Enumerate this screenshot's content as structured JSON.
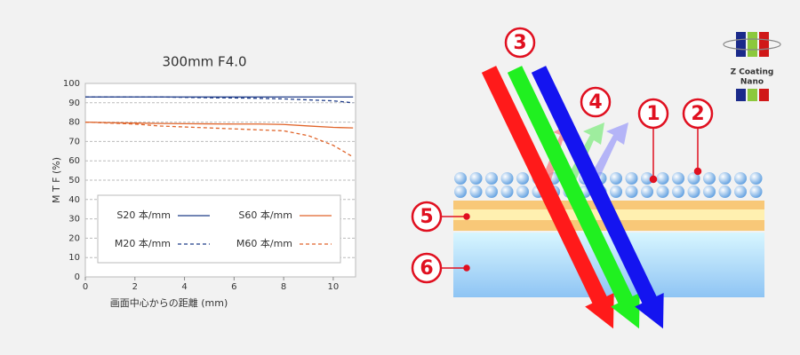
{
  "chart_data": {
    "type": "line",
    "title": "300mm F4.0",
    "x_label": "画面中心からの距離 (mm)",
    "y_label": "M T F (%)",
    "x": [
      0,
      1,
      2,
      3,
      4,
      5,
      6,
      7,
      8,
      9,
      10,
      10.8
    ],
    "series": [
      {
        "name": "S20 本/mm",
        "color": "#1f3c88",
        "dashed": false,
        "values": [
          93,
          93,
          93,
          93,
          93,
          93,
          93,
          93,
          93,
          93,
          93,
          93
        ]
      },
      {
        "name": "M20 本/mm",
        "color": "#1f3c88",
        "dashed": true,
        "values": [
          93,
          93,
          93,
          93,
          92.8,
          92.6,
          92.5,
          92.3,
          92,
          91.5,
          91,
          90
        ]
      },
      {
        "name": "S60 本/mm",
        "color": "#e0642a",
        "dashed": false,
        "values": [
          80,
          79.7,
          79.5,
          79.3,
          79.2,
          79.1,
          79,
          79,
          78.8,
          78,
          77.3,
          77
        ]
      },
      {
        "name": "M60 本/mm",
        "color": "#e0642a",
        "dashed": true,
        "values": [
          80,
          79.5,
          79,
          78,
          77.5,
          77,
          76.5,
          76,
          75.5,
          73,
          68,
          62
        ]
      }
    ],
    "xlim": [
      0,
      10.9
    ],
    "xticks": [
      0,
      2,
      4,
      6,
      8,
      10
    ],
    "ylim": [
      0,
      100
    ],
    "yticks": [
      0,
      10,
      20,
      30,
      40,
      50,
      60,
      70,
      80,
      90,
      100
    ],
    "grid": true
  },
  "diagram": {
    "callouts": [
      "1",
      "2",
      "3",
      "4",
      "5",
      "6"
    ],
    "logo": [
      "Z Coating",
      "Nano"
    ]
  }
}
